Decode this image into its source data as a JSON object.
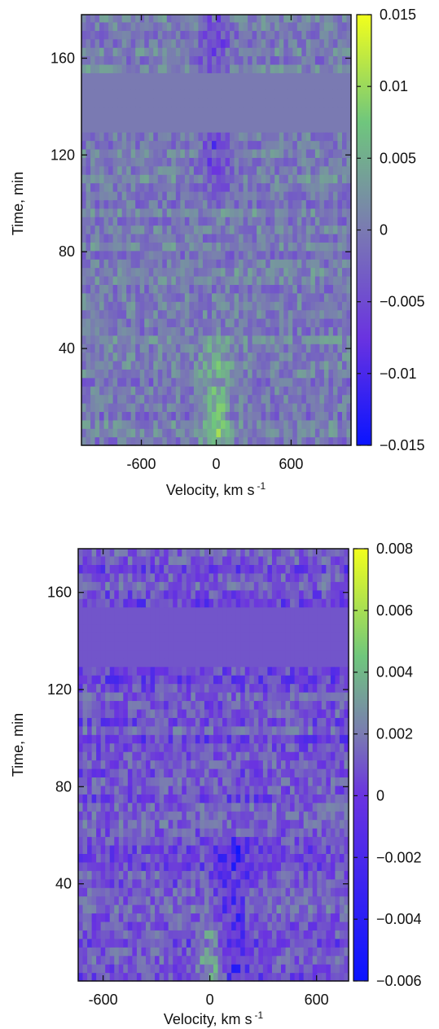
{
  "chart_data": [
    {
      "type": "heatmap",
      "xlabel": "Velocity, km s",
      "xlabel_sup": "-1",
      "ylabel": "Time, min",
      "xlim": [
        -1080,
        1080
      ],
      "ylim": [
        0,
        178
      ],
      "xticks": [
        -600,
        0,
        600
      ],
      "xtick_labels": [
        "-600",
        "0",
        "600"
      ],
      "yticks": [
        40,
        80,
        120,
        160
      ],
      "ytick_labels": [
        "40",
        "80",
        "120",
        "160"
      ],
      "colorbar": {
        "range": [
          -0.015,
          0.015
        ],
        "ticks": [
          0.015,
          0.01,
          0.005,
          0,
          -0.005,
          -0.01,
          -0.015
        ],
        "tick_labels": [
          "0.015",
          "0.01",
          "0.005",
          "0",
          "−0.005",
          "−0.01",
          "−0.015"
        ]
      },
      "colormap": [
        "#0a14ff",
        "#6a33e0",
        "#7a7ab2",
        "#6fc67d",
        "#f2ff1c"
      ],
      "data_gap_minutes": [
        128,
        155
      ],
      "time_step_minutes": 3.5,
      "features": {
        "central_emission": {
          "velocity_center": 0,
          "width": 120,
          "time_range": [
            0,
            50
          ],
          "peak": 0.008
        },
        "central_absorption": {
          "velocity_center": 0,
          "width": 120,
          "time_range": [
            100,
            178
          ],
          "peak": -0.007
        }
      },
      "noise_amplitude": 0.0035,
      "background_level": 0.0
    },
    {
      "type": "heatmap",
      "xlabel": "Velocity, km s",
      "xlabel_sup": "-1",
      "ylabel": "Time, min",
      "xlim": [
        -740,
        780
      ],
      "ylim": [
        0,
        178
      ],
      "xticks": [
        -600,
        0,
        600
      ],
      "xtick_labels": [
        "-600",
        "0",
        "600"
      ],
      "yticks": [
        40,
        80,
        120,
        160
      ],
      "ytick_labels": [
        "40",
        "80",
        "120",
        "160"
      ],
      "colorbar": {
        "range": [
          -0.006,
          0.008
        ],
        "ticks": [
          0.008,
          0.006,
          0.004,
          0.002,
          0,
          -0.002,
          -0.004,
          -0.006
        ],
        "tick_labels": [
          "0.008",
          "0.006",
          "0.004",
          "0.002",
          "0",
          "−0.002",
          "−0.004",
          "−0.006"
        ]
      },
      "colormap": [
        "#0a14ff",
        "#6a33e0",
        "#7a7ab2",
        "#6fc67d",
        "#f2ff1c"
      ],
      "data_gap_minutes": [
        128,
        155
      ],
      "time_step_minutes": 3.5,
      "features": {
        "central_emission": {
          "velocity_center": 20,
          "width": 80,
          "time_range": [
            0,
            25
          ],
          "peak": 0.005
        },
        "central_absorption": {
          "velocity_center": 120,
          "width": 100,
          "time_range": [
            0,
            60
          ],
          "peak": -0.003
        }
      },
      "noise_amplitude": 0.0022,
      "background_level": -0.0008
    }
  ]
}
